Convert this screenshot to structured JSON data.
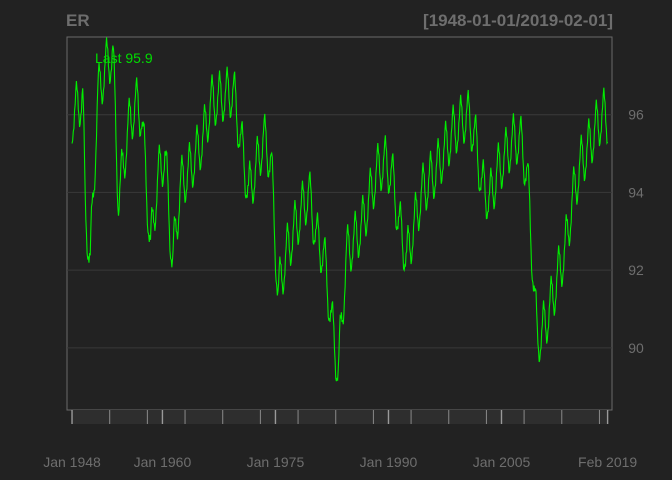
{
  "chart_data": {
    "type": "line",
    "title": "ER",
    "date_range_label": "[1948-01-01/2019-02-01]",
    "last_label": "Last 95.9",
    "x_tick_labels": [
      "Jan 1948",
      "Jan 1960",
      "Jan 1975",
      "Jan 1990",
      "Jan 2005",
      "Feb 2019"
    ],
    "y_tick_labels": [
      "90",
      "92",
      "94",
      "96"
    ],
    "ylim": [
      88.4,
      98.0
    ],
    "xlim": [
      "1947-05",
      "2019-09"
    ],
    "grid": true,
    "series": [
      {
        "color": "#00ee00",
        "seasonal_amplitude": 0.6,
        "points": [
          [
            "1948-01",
            95.9
          ],
          [
            "1949-06",
            96.5
          ],
          [
            "1949-10",
            93.6
          ],
          [
            "1950-06",
            92.2
          ],
          [
            "1951-06",
            96.5
          ],
          [
            "1952-06",
            97.2
          ],
          [
            "1953-06",
            97.6
          ],
          [
            "1954-03",
            93.8
          ],
          [
            "1955-06",
            95.6
          ],
          [
            "1956-06",
            96.3
          ],
          [
            "1957-04",
            96.0
          ],
          [
            "1958-06",
            92.6
          ],
          [
            "1959-06",
            94.4
          ],
          [
            "1960-05",
            95.0
          ],
          [
            "1961-05",
            92.2
          ],
          [
            "1962-06",
            94.2
          ],
          [
            "1963-06",
            94.5
          ],
          [
            "1965-06",
            95.4
          ],
          [
            "1966-06",
            96.3
          ],
          [
            "1968-06",
            96.5
          ],
          [
            "1969-06",
            96.6
          ],
          [
            "1970-10",
            94.9
          ],
          [
            "1971-06",
            94.0
          ],
          [
            "1972-06",
            94.6
          ],
          [
            "1973-06",
            95.4
          ],
          [
            "1974-06",
            94.8
          ],
          [
            "1975-05",
            91.4
          ],
          [
            "1976-06",
            92.4
          ],
          [
            "1977-06",
            93.0
          ],
          [
            "1979-06",
            94.0
          ],
          [
            "1980-07",
            92.8
          ],
          [
            "1981-06",
            92.4
          ],
          [
            "1982-10",
            90.2
          ],
          [
            "1983-05",
            89.4
          ],
          [
            "1984-06",
            92.4
          ],
          [
            "1986-06",
            93.1
          ],
          [
            "1987-06",
            93.8
          ],
          [
            "1988-06",
            94.5
          ],
          [
            "1989-06",
            94.8
          ],
          [
            "1990-06",
            94.5
          ],
          [
            "1991-06",
            93.2
          ],
          [
            "1992-06",
            92.3
          ],
          [
            "1994-06",
            94.0
          ],
          [
            "1996-06",
            94.6
          ],
          [
            "1998-06",
            95.5
          ],
          [
            "2000-06",
            96.0
          ],
          [
            "2001-06",
            95.5
          ],
          [
            "2002-06",
            94.2
          ],
          [
            "2003-06",
            93.8
          ],
          [
            "2004-06",
            94.5
          ],
          [
            "2005-06",
            94.9
          ],
          [
            "2006-06",
            95.3
          ],
          [
            "2007-06",
            95.4
          ],
          [
            "2008-06",
            94.5
          ],
          [
            "2009-10",
            90.2
          ],
          [
            "2010-06",
            90.4
          ],
          [
            "2011-06",
            91.0
          ],
          [
            "2012-06",
            91.8
          ],
          [
            "2013-06",
            92.5
          ],
          [
            "2014-06",
            93.8
          ],
          [
            "2015-06",
            94.7
          ],
          [
            "2016-06",
            95.1
          ],
          [
            "2017-06",
            95.6
          ],
          [
            "2018-06",
            96.0
          ],
          [
            "2019-02",
            95.9
          ]
        ]
      }
    ]
  }
}
